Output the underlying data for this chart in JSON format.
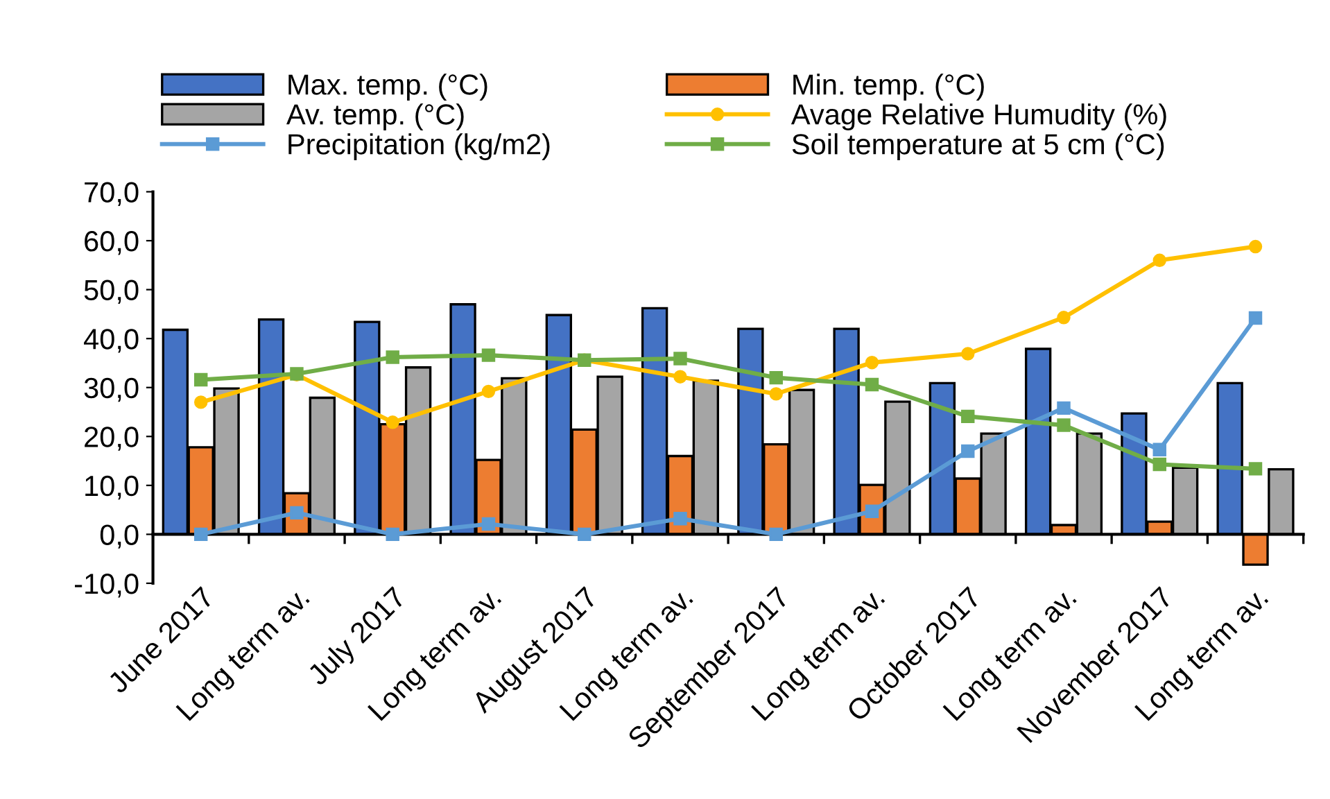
{
  "chart_data": {
    "type": "bar",
    "categories": [
      "June 2017",
      "Long term av.",
      "July 2017",
      "Long term av.",
      "August 2017",
      "Long term av.",
      "September 2017",
      "Long term av.",
      "October 2017",
      "Long term av.",
      "November 2017",
      "Long term av."
    ],
    "ylim": [
      -10,
      70
    ],
    "yticks": [
      {
        "value": -10,
        "label": "-10,0"
      },
      {
        "value": 0,
        "label": "0,0"
      },
      {
        "value": 10,
        "label": "10,0"
      },
      {
        "value": 20,
        "label": "20,0"
      },
      {
        "value": 30,
        "label": "30,0"
      },
      {
        "value": 40,
        "label": "40,0"
      },
      {
        "value": 50,
        "label": "50,0"
      },
      {
        "value": 60,
        "label": "60,0"
      },
      {
        "value": 70,
        "label": "70,0"
      }
    ],
    "grid": false,
    "legend": "top",
    "series": [
      {
        "name": "Max. temp. (°C)",
        "color": "#4472c4",
        "values": [
          41.8,
          43.9,
          43.4,
          47.0,
          44.8,
          46.2,
          42.0,
          42.0,
          30.9,
          37.9,
          24.7,
          30.9
        ]
      },
      {
        "name": "Min. temp. (°C)",
        "color": "#ed7d31",
        "values": [
          17.8,
          8.4,
          22.5,
          15.2,
          21.4,
          16.0,
          18.4,
          10.1,
          11.4,
          1.9,
          2.6,
          -6.2
        ]
      },
      {
        "name": "Av. temp. (°C)",
        "color": "#a5a5a5",
        "values": [
          29.8,
          27.9,
          34.1,
          31.9,
          32.2,
          31.4,
          29.5,
          27.1,
          20.6,
          20.6,
          13.6,
          13.3
        ]
      },
      {
        "name": "Avage Relative Humudity (%)",
        "type": "line",
        "marker": "circle",
        "color": "#ffc000",
        "values": [
          27.0,
          32.6,
          22.9,
          29.2,
          35.6,
          32.2,
          28.7,
          35.1,
          36.9,
          44.3,
          56.0,
          58.8
        ]
      },
      {
        "name": "Precipitation (kg/m2)",
        "type": "line",
        "marker": "square",
        "color": "#5b9bd5",
        "values": [
          0,
          4.4,
          0,
          2.1,
          0,
          3.2,
          0,
          4.7,
          17.0,
          25.8,
          17.3,
          44.2
        ]
      },
      {
        "name": "Soil temperature at 5 cm (°C)",
        "type": "line",
        "marker": "square",
        "color": "#70ad47",
        "values": [
          31.6,
          32.8,
          36.2,
          36.6,
          35.6,
          35.9,
          32.0,
          30.6,
          24.1,
          22.3,
          14.3,
          13.4
        ]
      }
    ]
  }
}
